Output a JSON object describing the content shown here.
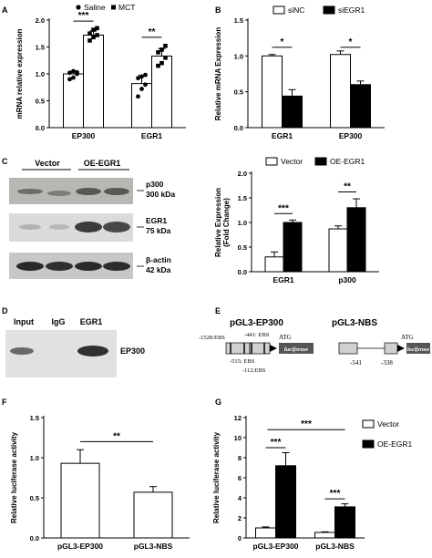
{
  "chart_data": [
    {
      "panel": "A",
      "type": "bar",
      "categories": [
        "EP300",
        "EGR1"
      ],
      "series": [
        {
          "name": "Saline",
          "values": [
            1.0,
            0.82
          ],
          "errors": [
            0.05,
            0.15
          ],
          "points": [
            [
              0.9,
              0.93,
              1.0,
              1.02,
              1.05,
              1.03
            ],
            [
              0.58,
              0.72,
              0.8,
              0.92,
              0.95,
              0.98
            ]
          ]
        },
        {
          "name": "MCT",
          "values": [
            1.72,
            1.33
          ],
          "errors": [
            0.08,
            0.14
          ],
          "points": [
            [
              1.62,
              1.68,
              1.72,
              1.75,
              1.82,
              1.85
            ],
            [
              1.15,
              1.2,
              1.3,
              1.4,
              1.45,
              1.52
            ]
          ]
        }
      ],
      "ylabel": "mRNA relative expression",
      "ylim": [
        0,
        2.0
      ],
      "yticks": [
        0.0,
        0.5,
        1.0,
        1.5,
        2.0
      ],
      "significance": [
        "***",
        "**"
      ],
      "legend": "top"
    },
    {
      "panel": "B",
      "type": "bar",
      "categories": [
        "EGR1",
        "EP300"
      ],
      "series": [
        {
          "name": "siNC",
          "values": [
            1.0,
            1.02
          ],
          "errors": [
            0.02,
            0.05
          ]
        },
        {
          "name": "siEGR1",
          "values": [
            0.44,
            0.6
          ],
          "errors": [
            0.09,
            0.05
          ]
        }
      ],
      "ylabel": "Relative mRNA Expression",
      "ylim": [
        0,
        1.5
      ],
      "yticks": [
        0.0,
        0.5,
        1.0,
        1.5
      ],
      "significance": [
        "*",
        "*"
      ],
      "legend": "top"
    },
    {
      "panel": "C",
      "type": "bar",
      "categories": [
        "EGR1",
        "p300"
      ],
      "series": [
        {
          "name": "Vector",
          "values": [
            0.3,
            0.87
          ],
          "errors": [
            0.1,
            0.06
          ]
        },
        {
          "name": "OE-EGR1",
          "values": [
            1.0,
            1.3
          ],
          "errors": [
            0.05,
            0.18
          ]
        }
      ],
      "ylabel": "Relative Expression (Fold Change)",
      "ylim": [
        0,
        2.0
      ],
      "yticks": [
        0.0,
        0.5,
        1.0,
        1.5,
        2.0
      ],
      "significance": [
        "***",
        "**"
      ],
      "legend": "top"
    },
    {
      "panel": "F",
      "type": "bar",
      "categories": [
        "pGL3-EP300",
        "pGL3-NBS"
      ],
      "series": [
        {
          "values": [
            0.93,
            0.57
          ],
          "errors": [
            0.17,
            0.07
          ]
        }
      ],
      "ylabel": "Relative luciferase activity",
      "ylim": [
        0,
        1.5
      ],
      "yticks": [
        0.0,
        0.5,
        1.0,
        1.5
      ],
      "significance": [
        "**"
      ]
    },
    {
      "panel": "G",
      "type": "bar",
      "categories": [
        "pGL3-EP300",
        "pGL3-NBS"
      ],
      "series": [
        {
          "name": "Vector",
          "values": [
            1.0,
            0.55
          ],
          "errors": [
            0.1,
            0.06
          ]
        },
        {
          "name": "OE-EGR1",
          "values": [
            7.2,
            3.1
          ],
          "errors": [
            1.3,
            0.3
          ]
        }
      ],
      "ylabel": "Relative luciferase activity",
      "ylim": [
        0,
        12
      ],
      "yticks": [
        0,
        2,
        4,
        6,
        8,
        10,
        12
      ],
      "significance": [
        "***",
        "***",
        "***"
      ],
      "legend": "right"
    }
  ],
  "panel_letters": [
    "A",
    "B",
    "C",
    "D",
    "E",
    "F",
    "G"
  ],
  "blot_c": {
    "lanes": [
      "Vector",
      "OE-EGR1"
    ],
    "rows": [
      {
        "protein": "p300",
        "size": "300 kDa"
      },
      {
        "protein": "EGR1",
        "size": "75 kDa"
      },
      {
        "protein": "β-actin",
        "size": "42 kDa"
      }
    ]
  },
  "blot_d": {
    "lanes": [
      "Input",
      "IgG",
      "EGR1"
    ],
    "band": "EP300"
  },
  "diagram_e": {
    "construct1": "pGL3-EP300",
    "construct2": "pGL3-NBS",
    "labels": [
      "-1528:EBS",
      "-441: EBS",
      "-515: EBS",
      "-112:EBS",
      "ATG",
      "luciferase",
      "-541",
      "-338",
      "ATG",
      "luciferase"
    ]
  }
}
